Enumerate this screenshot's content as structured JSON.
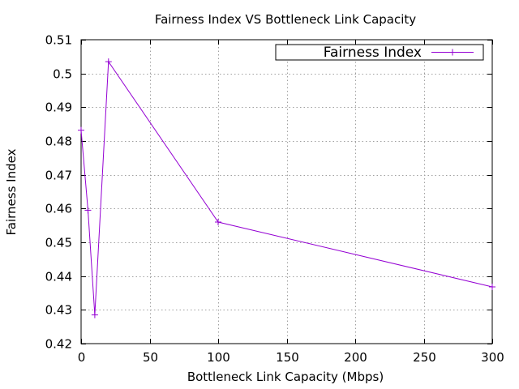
{
  "chart_data": {
    "type": "line",
    "title": "Fairness Index VS Bottleneck Link Capacity",
    "xlabel": "Bottleneck Link Capacity (Mbps)",
    "ylabel": "Fairness Index",
    "xlim": [
      0,
      300
    ],
    "ylim": [
      0.42,
      0.51
    ],
    "xticks": [
      0,
      50,
      100,
      150,
      200,
      250,
      300
    ],
    "yticks": [
      0.42,
      0.43,
      0.44,
      0.45,
      0.46,
      0.47,
      0.48,
      0.49,
      0.5,
      0.51
    ],
    "xtick_labels": [
      "0",
      "50",
      "100",
      "150",
      "200",
      "250",
      "300"
    ],
    "ytick_labels": [
      "0.42",
      "0.43",
      "0.44",
      "0.45",
      "0.46",
      "0.47",
      "0.48",
      "0.49",
      "0.5",
      "0.51"
    ],
    "grid": true,
    "legend_position": "top-right",
    "series": [
      {
        "name": "Fairness Index",
        "color": "#9400d3",
        "marker": "plus",
        "x": [
          0,
          5,
          10,
          20,
          100,
          300
        ],
        "y": [
          0.4832,
          0.4595,
          0.4285,
          0.5035,
          0.456,
          0.4368
        ]
      }
    ]
  }
}
